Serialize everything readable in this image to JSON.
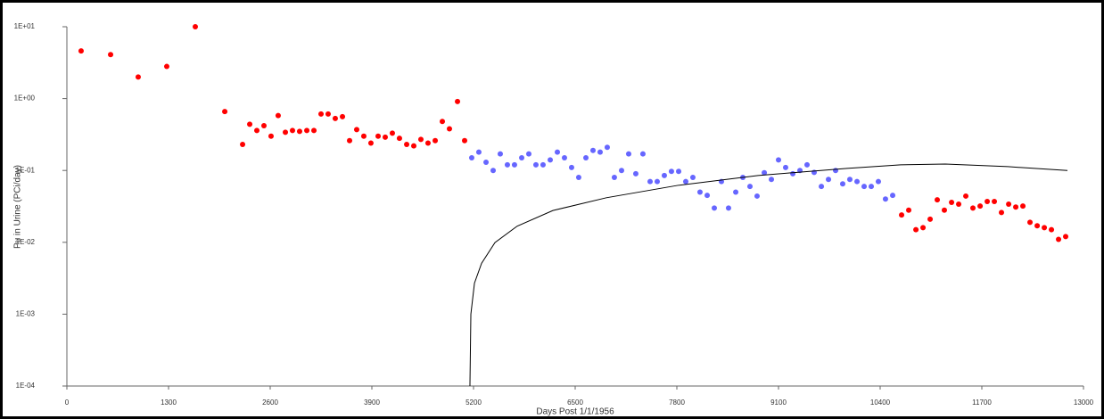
{
  "chart_data": {
    "type": "scatter",
    "xlabel": "Days Post 1/1/1956",
    "ylabel": "Pu in Urine (PCi/day)",
    "log_y": true,
    "xlim": [
      0,
      13000
    ],
    "ylim": [
      0.0001,
      10
    ],
    "xticks": [
      0,
      1300,
      2600,
      3900,
      5200,
      6500,
      7800,
      9100,
      10400,
      11700,
      13000
    ],
    "yticks": [
      {
        "value": 0.0001,
        "label": "1E-04"
      },
      {
        "value": 0.001,
        "label": "1E-03"
      },
      {
        "value": 0.01,
        "label": "1E-02"
      },
      {
        "value": 0.1,
        "label": "1E-01"
      },
      {
        "value": 1,
        "label": "1E+00"
      },
      {
        "value": 10,
        "label": "1E+01"
      }
    ],
    "series": [
      {
        "color": "#ff0000",
        "mode": "markers",
        "x": [
          182,
          559,
          912,
          1277,
          1642,
          2019,
          2247,
          2338,
          2429,
          2520,
          2611,
          2702,
          2794,
          2885,
          2976,
          3068,
          3159,
          3250,
          3341,
          3432,
          3524,
          3615,
          3706,
          3797,
          3888,
          3980,
          4071,
          4162,
          4253,
          4345,
          4436,
          4527,
          4618,
          4710,
          4801,
          4892,
          4995,
          5086,
          10674,
          10765,
          10857,
          10948,
          11039,
          11130,
          11221,
          11313,
          11404,
          11495,
          11586,
          11678,
          11769,
          11860,
          11951,
          12043,
          12134,
          12225,
          12316,
          12408,
          12499,
          12590,
          12681,
          12772
        ],
        "values": [
          4.6,
          4.1,
          2.0,
          2.8,
          10,
          0.66,
          0.23,
          0.44,
          0.36,
          0.42,
          0.3,
          0.58,
          0.34,
          0.36,
          0.35,
          0.36,
          0.36,
          0.61,
          0.61,
          0.53,
          0.56,
          0.26,
          0.37,
          0.3,
          0.24,
          0.3,
          0.29,
          0.33,
          0.28,
          0.23,
          0.22,
          0.27,
          0.24,
          0.26,
          0.48,
          0.38,
          0.91,
          0.26,
          0.024,
          0.028,
          0.015,
          0.016,
          0.021,
          0.039,
          0.028,
          0.036,
          0.034,
          0.044,
          0.03,
          0.032,
          0.037,
          0.037,
          0.026,
          0.034,
          0.031,
          0.032,
          0.019,
          0.017,
          0.016,
          0.015,
          0.011,
          0.012
        ]
      },
      {
        "color": "#6666ff",
        "mode": "markers",
        "x": [
          5177,
          5268,
          5360,
          5451,
          5542,
          5633,
          5724,
          5816,
          5907,
          5998,
          6089,
          6181,
          6272,
          6363,
          6454,
          6545,
          6637,
          6728,
          6819,
          6910,
          7001,
          7093,
          7184,
          7275,
          7366,
          7458,
          7549,
          7640,
          7731,
          7823,
          7914,
          8005,
          8096,
          8188,
          8279,
          8370,
          8461,
          8553,
          8644,
          8735,
          8826,
          8918,
          9009,
          9100,
          9191,
          9283,
          9374,
          9465,
          9556,
          9648,
          9739,
          9830,
          9921,
          10012,
          10104,
          10195,
          10286,
          10377,
          10468,
          10560
        ],
        "values": [
          0.15,
          0.18,
          0.13,
          0.1,
          0.17,
          0.12,
          0.12,
          0.15,
          0.17,
          0.12,
          0.12,
          0.14,
          0.18,
          0.15,
          0.11,
          0.08,
          0.15,
          0.19,
          0.18,
          0.21,
          0.08,
          0.1,
          0.17,
          0.09,
          0.17,
          0.07,
          0.07,
          0.085,
          0.097,
          0.097,
          0.07,
          0.08,
          0.05,
          0.045,
          0.03,
          0.07,
          0.03,
          0.05,
          0.08,
          0.06,
          0.044,
          0.093,
          0.075,
          0.14,
          0.11,
          0.09,
          0.1,
          0.12,
          0.094,
          0.06,
          0.075,
          0.1,
          0.065,
          0.075,
          0.07,
          0.06,
          0.06,
          0.07,
          0.04,
          0.045
        ]
      },
      {
        "color": "#000000",
        "mode": "line",
        "x": [
          5154,
          5166,
          5212,
          5303,
          5474,
          5759,
          6215,
          6899,
          7812,
          8838,
          9978,
          10663,
          11233,
          12031,
          12795
        ],
        "values": [
          0.0001,
          0.001,
          0.0027,
          0.0051,
          0.0099,
          0.0168,
          0.0277,
          0.0417,
          0.062,
          0.085,
          0.107,
          0.12,
          0.123,
          0.113,
          0.1
        ]
      }
    ]
  }
}
